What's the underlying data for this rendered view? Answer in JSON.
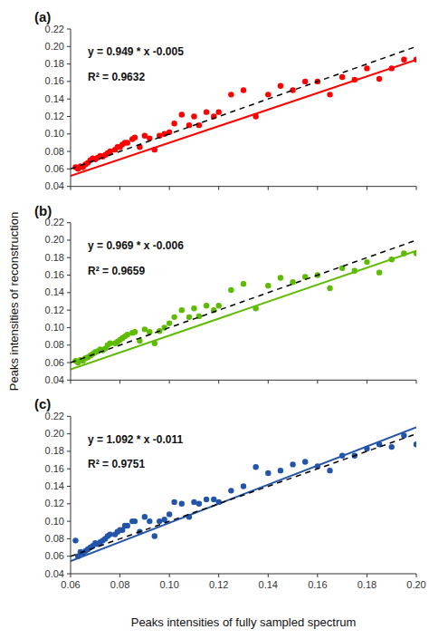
{
  "chart_data": [
    {
      "type": "scatter",
      "title": "(a)",
      "annotations": [
        "y = 0.949 * x -0.005",
        "R² = 0.9632"
      ],
      "xlim": [
        0.06,
        0.2
      ],
      "ylim": [
        0.04,
        0.22
      ],
      "xticks": [
        0.06,
        0.08,
        {
          "value": 0.1,
          "label": "0.10"
        },
        0.12,
        0.14,
        0.16,
        0.18,
        {
          "value": 0.2,
          "label": "0.20"
        }
      ],
      "yticks": [
        0.04,
        0.06,
        0.08,
        {
          "value": 0.1,
          "label": "0.10"
        },
        0.12,
        0.14,
        0.16,
        0.18,
        {
          "value": 0.2,
          "label": "0.20"
        },
        0.22
      ],
      "tick_labels": "y",
      "grid": false,
      "series": [
        {
          "color": "#FF0000",
          "marker": "circle",
          "x": [
            0.062,
            0.063,
            0.064,
            0.065,
            0.066,
            0.067,
            0.068,
            0.069,
            0.07,
            0.071,
            0.072,
            0.073,
            0.074,
            0.075,
            0.076,
            0.078,
            0.079,
            0.08,
            0.081,
            0.082,
            0.083,
            0.085,
            0.086,
            0.088,
            0.09,
            0.092,
            0.094,
            0.096,
            0.098,
            0.1,
            0.102,
            0.105,
            0.108,
            0.11,
            0.112,
            0.115,
            0.118,
            0.12,
            0.125,
            0.13,
            0.135,
            0.14,
            0.145,
            0.15,
            0.155,
            0.16,
            0.165,
            0.17,
            0.175,
            0.18,
            0.185,
            0.19,
            0.195,
            0.2
          ],
          "values": [
            0.062,
            0.06,
            0.063,
            0.062,
            0.065,
            0.067,
            0.07,
            0.072,
            0.071,
            0.073,
            0.075,
            0.074,
            0.076,
            0.078,
            0.08,
            0.082,
            0.085,
            0.085,
            0.088,
            0.09,
            0.09,
            0.094,
            0.096,
            0.085,
            0.098,
            0.095,
            0.082,
            0.098,
            0.1,
            0.102,
            0.112,
            0.122,
            0.11,
            0.12,
            0.11,
            0.125,
            0.12,
            0.125,
            0.145,
            0.15,
            0.12,
            0.145,
            0.155,
            0.15,
            0.16,
            0.16,
            0.145,
            0.165,
            0.162,
            0.175,
            0.163,
            0.175,
            0.185,
            0.185
          ]
        },
        {
          "type": "line",
          "color": "#FF0000",
          "line_style": "solid",
          "x": [
            0.06,
            0.2
          ],
          "values": [
            0.05194,
            0.1848
          ]
        },
        {
          "type": "line",
          "color": "black",
          "line_style": "dashed",
          "x": [
            0.06,
            0.2
          ],
          "values": [
            0.06,
            0.2
          ]
        }
      ]
    },
    {
      "type": "scatter",
      "title": "(b)",
      "ylabel": "Peaks intensities of reconstruction",
      "annotations": [
        "y = 0.969 * x -0.006",
        "R² = 0.9659"
      ],
      "xlim": [
        0.06,
        0.2
      ],
      "ylim": [
        0.04,
        0.22
      ],
      "xticks": [
        0.06,
        0.08,
        {
          "value": 0.1,
          "label": "0.10"
        },
        0.12,
        0.14,
        0.16,
        0.18,
        {
          "value": 0.2,
          "label": "0.20"
        }
      ],
      "yticks": [
        0.04,
        0.06,
        0.08,
        {
          "value": 0.1,
          "label": "0.10"
        },
        0.12,
        0.14,
        0.16,
        0.18,
        {
          "value": 0.2,
          "label": "0.20"
        },
        0.22
      ],
      "tick_labels": "y",
      "grid": false,
      "series": [
        {
          "color": "#5DBB00",
          "marker": "circle",
          "x": [
            0.062,
            0.063,
            0.064,
            0.065,
            0.066,
            0.067,
            0.068,
            0.069,
            0.07,
            0.071,
            0.072,
            0.073,
            0.074,
            0.075,
            0.076,
            0.078,
            0.079,
            0.08,
            0.081,
            0.082,
            0.083,
            0.085,
            0.086,
            0.088,
            0.09,
            0.092,
            0.094,
            0.096,
            0.098,
            0.1,
            0.102,
            0.105,
            0.108,
            0.11,
            0.112,
            0.115,
            0.118,
            0.12,
            0.125,
            0.13,
            0.135,
            0.14,
            0.145,
            0.15,
            0.155,
            0.16,
            0.165,
            0.17,
            0.175,
            0.18,
            0.185,
            0.19,
            0.195,
            0.2
          ],
          "values": [
            0.062,
            0.06,
            0.063,
            0.062,
            0.065,
            0.066,
            0.068,
            0.07,
            0.072,
            0.073,
            0.075,
            0.074,
            0.076,
            0.08,
            0.082,
            0.082,
            0.084,
            0.086,
            0.088,
            0.09,
            0.092,
            0.094,
            0.095,
            0.085,
            0.098,
            0.095,
            0.082,
            0.096,
            0.1,
            0.105,
            0.112,
            0.12,
            0.112,
            0.122,
            0.113,
            0.125,
            0.12,
            0.125,
            0.143,
            0.15,
            0.122,
            0.148,
            0.157,
            0.152,
            0.158,
            0.16,
            0.145,
            0.168,
            0.165,
            0.175,
            0.163,
            0.178,
            0.185,
            0.185
          ]
        },
        {
          "type": "line",
          "color": "#5DBB00",
          "line_style": "solid",
          "x": [
            0.06,
            0.2
          ],
          "values": [
            0.05214,
            0.1878
          ]
        },
        {
          "type": "line",
          "color": "black",
          "line_style": "dashed",
          "x": [
            0.06,
            0.2
          ],
          "values": [
            0.06,
            0.2
          ]
        }
      ]
    },
    {
      "type": "scatter",
      "title": "(c)",
      "xlabel": "Peaks intensities of fully sampled spectrum",
      "annotations": [
        "y = 1.092 * x -0.011",
        "R² = 0.9751"
      ],
      "xlim": [
        0.06,
        0.2
      ],
      "ylim": [
        0.04,
        0.22
      ],
      "xticks": [
        0.06,
        0.08,
        {
          "value": 0.1,
          "label": "0.10"
        },
        0.12,
        0.14,
        0.16,
        0.18,
        {
          "value": 0.2,
          "label": "0.20"
        }
      ],
      "yticks": [
        0.04,
        0.06,
        0.08,
        {
          "value": 0.1,
          "label": "0.10"
        },
        0.12,
        0.14,
        0.16,
        0.18,
        {
          "value": 0.2,
          "label": "0.20"
        },
        0.22
      ],
      "tick_labels": true,
      "grid": false,
      "series": [
        {
          "color": "#2255AA",
          "marker": "circle",
          "x": [
            0.062,
            0.063,
            0.064,
            0.065,
            0.066,
            0.067,
            0.068,
            0.069,
            0.07,
            0.071,
            0.072,
            0.073,
            0.074,
            0.075,
            0.076,
            0.078,
            0.079,
            0.08,
            0.081,
            0.082,
            0.083,
            0.085,
            0.086,
            0.088,
            0.09,
            0.092,
            0.094,
            0.096,
            0.098,
            0.1,
            0.102,
            0.105,
            0.108,
            0.11,
            0.112,
            0.115,
            0.118,
            0.12,
            0.125,
            0.13,
            0.135,
            0.14,
            0.145,
            0.15,
            0.155,
            0.16,
            0.165,
            0.17,
            0.175,
            0.18,
            0.185,
            0.19,
            0.195,
            0.2
          ],
          "values": [
            0.078,
            0.06,
            0.065,
            0.063,
            0.066,
            0.068,
            0.07,
            0.072,
            0.075,
            0.074,
            0.076,
            0.078,
            0.08,
            0.083,
            0.085,
            0.085,
            0.088,
            0.09,
            0.09,
            0.095,
            0.095,
            0.1,
            0.1,
            0.088,
            0.105,
            0.1,
            0.083,
            0.1,
            0.102,
            0.108,
            0.122,
            0.12,
            0.105,
            0.122,
            0.12,
            0.125,
            0.125,
            0.122,
            0.135,
            0.14,
            0.162,
            0.155,
            0.158,
            0.165,
            0.168,
            0.163,
            0.158,
            0.175,
            0.175,
            0.183,
            0.188,
            0.185,
            0.198,
            0.188
          ]
        },
        {
          "type": "line",
          "color": "#2255AA",
          "line_style": "solid",
          "x": [
            0.06,
            0.2
          ],
          "values": [
            0.05452,
            0.2074
          ]
        },
        {
          "type": "line",
          "color": "black",
          "line_style": "dashed",
          "x": [
            0.06,
            0.2
          ],
          "values": [
            0.06,
            0.2
          ]
        }
      ]
    }
  ]
}
